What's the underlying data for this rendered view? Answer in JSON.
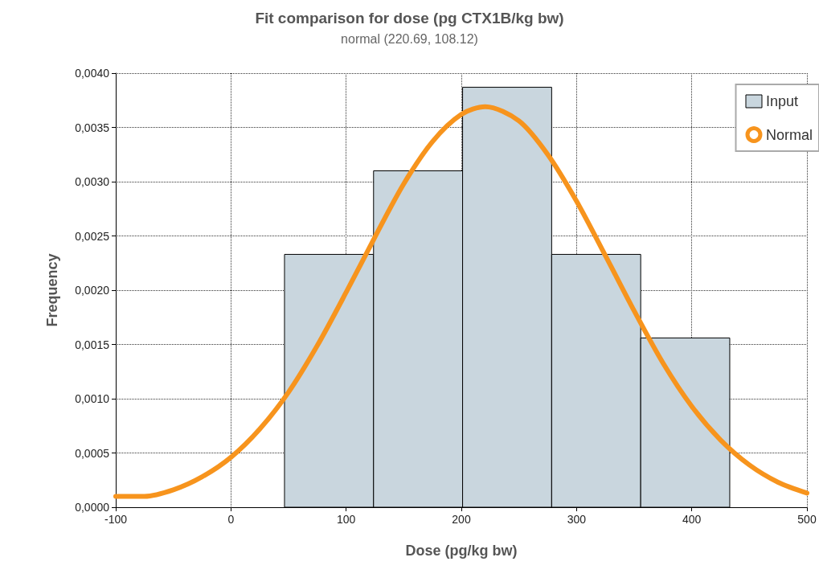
{
  "chart_data": {
    "type": "histogram",
    "title": "Fit comparison for dose (pg CTX1B/kg bw)",
    "subtitle": "normal (220.69, 108.12)",
    "xlabel": "Dose (pg/kg bw)",
    "ylabel": "Frequency",
    "xlim": [
      -100,
      500
    ],
    "xticks": [
      -100,
      0,
      100,
      200,
      300,
      400,
      500
    ],
    "ylim": [
      0,
      0.004
    ],
    "yticks": [
      {
        "value": 0,
        "label": "0,0000"
      },
      {
        "value": 0.0005,
        "label": "0,0005"
      },
      {
        "value": 0.001,
        "label": "0,0010"
      },
      {
        "value": 0.0015,
        "label": "0,0015"
      },
      {
        "value": 0.002,
        "label": "0,0020"
      },
      {
        "value": 0.0025,
        "label": "0,0025"
      },
      {
        "value": 0.003,
        "label": "0,0030"
      },
      {
        "value": 0.0035,
        "label": "0,0035"
      },
      {
        "value": 0.004,
        "label": "0,0040"
      }
    ],
    "grid": true,
    "legend": "top right",
    "series": [
      {
        "name": "Input",
        "color": "#c9d6de",
        "bins": [
          46.5,
          123.8,
          201.1,
          278.4,
          355.7,
          433
        ],
        "values": [
          0.00233,
          0.0031,
          0.00387,
          0.00233,
          0.00156
        ]
      },
      {
        "name": "Normal",
        "type": "line",
        "color": "#f7941d",
        "marker": "none",
        "x": [
          -100,
          -75,
          -50,
          -25,
          0,
          25,
          50,
          75,
          100,
          125,
          150,
          175,
          200,
          220.69,
          250,
          275,
          300,
          325,
          350,
          375,
          400,
          425,
          450,
          475,
          500
        ],
        "values": [
          0.0001,
          0.0001,
          0.00016,
          0.00028,
          0.00046,
          0.00072,
          0.00106,
          0.00149,
          0.00198,
          0.00249,
          0.00298,
          0.00337,
          0.00362,
          0.00369,
          0.00356,
          0.00325,
          0.00282,
          0.00232,
          0.00181,
          0.00133,
          0.00093,
          0.00062,
          0.00039,
          0.00023,
          0.00013
        ]
      }
    ]
  }
}
